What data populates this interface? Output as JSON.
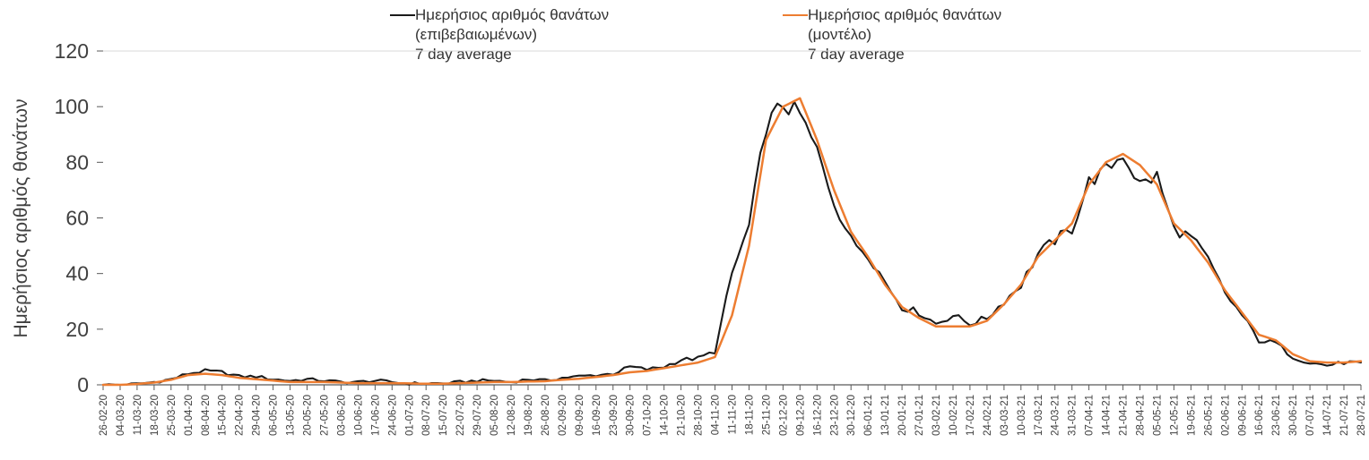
{
  "chart_data": {
    "type": "line",
    "title": "",
    "xlabel": "",
    "ylabel": "Ημερήσιος αριθμός θανάτων",
    "ylim": [
      0,
      120
    ],
    "yticks": [
      0,
      20,
      40,
      60,
      80,
      100,
      120
    ],
    "grid": "top-line-only",
    "legend_position": "top",
    "categories": [
      "26-02-20",
      "04-03-20",
      "11-03-20",
      "18-03-20",
      "25-03-20",
      "01-04-20",
      "08-04-20",
      "15-04-20",
      "22-04-20",
      "29-04-20",
      "06-05-20",
      "13-05-20",
      "20-05-20",
      "27-05-20",
      "03-06-20",
      "10-06-20",
      "17-06-20",
      "24-06-20",
      "01-07-20",
      "08-07-20",
      "15-07-20",
      "22-07-20",
      "29-07-20",
      "05-08-20",
      "12-08-20",
      "19-08-20",
      "26-08-20",
      "02-09-20",
      "09-09-20",
      "16-09-20",
      "23-09-20",
      "30-09-20",
      "07-10-20",
      "14-10-20",
      "21-10-20",
      "28-10-20",
      "04-11-20",
      "11-11-20",
      "18-11-20",
      "25-11-20",
      "02-12-20",
      "09-12-20",
      "16-12-20",
      "23-12-20",
      "30-12-20",
      "06-01-21",
      "13-01-21",
      "20-01-21",
      "27-01-21",
      "03-02-21",
      "10-02-21",
      "17-02-21",
      "24-02-21",
      "03-03-21",
      "10-03-21",
      "17-03-21",
      "24-03-21",
      "31-03-21",
      "07-04-21",
      "14-04-21",
      "21-04-21",
      "28-04-21",
      "05-05-21",
      "12-05-21",
      "19-05-21",
      "26-05-21",
      "02-06-21",
      "09-06-21",
      "16-06-21",
      "23-06-21",
      "30-06-21",
      "07-07-21",
      "14-07-21",
      "21-07-21",
      "28-07-21"
    ],
    "series": [
      {
        "name": "Ημερήσιος αριθμός θανάτων (επιβεβαιωμένων) 7 day average",
        "label_lines": [
          "Ημερήσιος αριθμός θανάτων",
          "(επιβεβαιωμένων)",
          "7 day average"
        ],
        "color": "#1a1a1a",
        "values": [
          0,
          0,
          0.3,
          1,
          2,
          4,
          5,
          4.5,
          3,
          3,
          2,
          1.5,
          2,
          1.5,
          1,
          1,
          1.5,
          1,
          0.5,
          0.5,
          0.5,
          1,
          1.5,
          1.5,
          1,
          2,
          1.5,
          2.5,
          3,
          3.5,
          4,
          6.5,
          5.5,
          6.5,
          9,
          9.5,
          12,
          40,
          57,
          93,
          101,
          97,
          84,
          66,
          52,
          47,
          37,
          28,
          26,
          22,
          25,
          22,
          24,
          30,
          36,
          47,
          52,
          56,
          73,
          77,
          83,
          72,
          75,
          56,
          53,
          45,
          33,
          25,
          16,
          15,
          10,
          8,
          7,
          8,
          8
        ]
      },
      {
        "name": "Ημερήσιος αριθμός θανάτων (μοντέλο) 7 day average",
        "label_lines": [
          "Ημερήσιος αριθμός θανάτων",
          "(μοντέλο)",
          "7 day average"
        ],
        "color": "#ED7D31",
        "values": [
          0,
          0,
          0.3,
          0.8,
          1.8,
          3.5,
          4,
          3.5,
          2.5,
          2,
          1.5,
          1,
          1,
          1,
          0.8,
          0.6,
          0.6,
          0.6,
          0.5,
          0.4,
          0.4,
          0.6,
          0.8,
          1,
          1,
          1.2,
          1.3,
          1.8,
          2.2,
          2.8,
          3.5,
          4.5,
          5,
          6,
          7,
          8,
          10,
          25,
          50,
          88,
          100,
          103,
          88,
          70,
          55,
          46,
          36,
          28,
          24,
          21,
          21,
          21,
          23,
          29,
          36,
          46,
          52,
          58,
          72,
          80,
          83,
          79,
          72,
          58,
          52,
          44,
          34,
          26,
          18,
          16,
          11,
          8.5,
          8,
          8,
          8.5
        ]
      }
    ]
  }
}
